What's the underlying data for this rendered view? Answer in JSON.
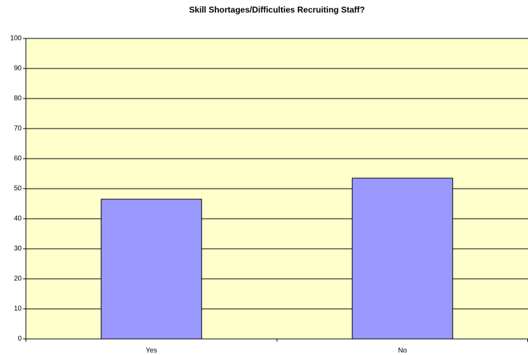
{
  "chart_data": {
    "type": "bar",
    "title": "Skill Shortages/Difficulties Recruiting Staff?",
    "categories": [
      "Yes",
      "No"
    ],
    "values": [
      46.5,
      53.5
    ],
    "color": "#9999ff",
    "ylim": [
      0,
      100
    ],
    "yticks": [
      0,
      10,
      20,
      30,
      40,
      50,
      60,
      70,
      80,
      90,
      100
    ],
    "grid": true
  }
}
